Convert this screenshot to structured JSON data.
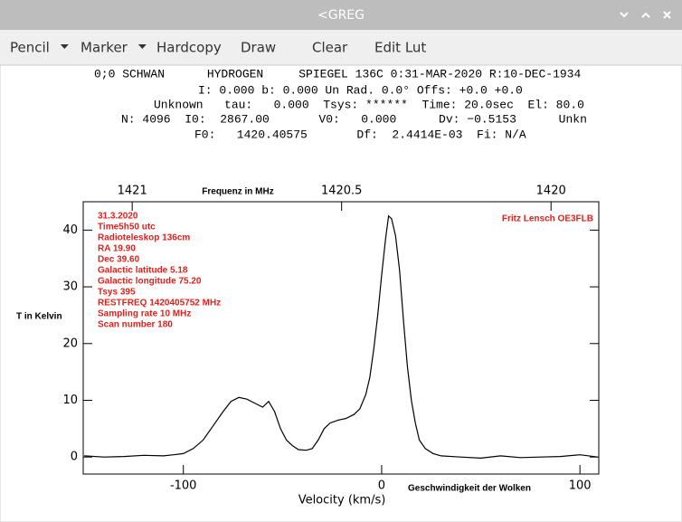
{
  "window": {
    "title": "<GREG"
  },
  "toolbar": {
    "buttons": [
      "Pencil",
      "Marker",
      "Hardcopy",
      "Draw",
      "Clear",
      "Edit Lut"
    ]
  },
  "header": {
    "lines": [
      "0;0 SCHWAN      HYDROGEN     SPIEGEL 136C 0:31-MAR-2020 R:10-DEC-1934",
      "I: 0.000 b: 0.000 Un Rad. 0.0° Offs: +0.0 +0.0",
      "Unknown   tau:   0.000  Tsys: ******  Time: 20.0sec  El: 80.0",
      "N: 4096  I0:  2867.00       V0:   0.000      Dv: −0.5153      Unkn",
      "F0:   1420.40575       Df:  2.4414E-03  Fi: N/A"
    ]
  },
  "chart_data": {
    "type": "line",
    "x_label": "Velocity (km/s)",
    "y_label": "T in Kelvin",
    "x2_label": "Frequenz in MHz",
    "annotations": [
      "31.3.2020",
      "Time5h50 utc",
      "Radioteleskop 136cm",
      "RA 19.90",
      "Dec 39.60",
      "Galactic latitude   5.18",
      "Galactic longitude 75.20",
      "Tsys    395",
      "RESTFREQ  1420405752 MHz",
      "Sampling rate 10 MHz",
      "Scan number   180"
    ],
    "annotation_right": "Fritz Lensch OE3FLB",
    "x_note": "Geschwindigkeit der Wolken",
    "annotation_color": "#e0201c",
    "x": [
      -150,
      -140,
      -130,
      -120,
      -110,
      -105,
      -100,
      -95,
      -90,
      -85,
      -80,
      -76,
      -72,
      -68,
      -64,
      -60,
      -57,
      -54,
      -51,
      -48,
      -45,
      -42,
      -38,
      -35,
      -32,
      -29,
      -26,
      -22,
      -18,
      -14,
      -11,
      -8,
      -6,
      -4,
      -2,
      0,
      2,
      3.5,
      5,
      7,
      9,
      11,
      13,
      15,
      17,
      19,
      22,
      26,
      30,
      40,
      50,
      60,
      70,
      80,
      90,
      100,
      109
    ],
    "series": [
      {
        "color": "#000000",
        "values": [
          0.2,
          0,
          0.1,
          0.3,
          0.2,
          0.4,
          0.6,
          1.5,
          3,
          5.5,
          8,
          9.8,
          10.5,
          10.2,
          9.5,
          8.8,
          9.8,
          8,
          5,
          3,
          2,
          1.3,
          1.2,
          1.5,
          3,
          5,
          6,
          6.5,
          6.8,
          7.5,
          8.5,
          11,
          14,
          19,
          25,
          32,
          38.5,
          42.5,
          42,
          39,
          33,
          24,
          16,
          10,
          6,
          3,
          1.5,
          0.6,
          0.2,
          0,
          -0.2,
          0.2,
          -0.1,
          0,
          0.1,
          0.4,
          0
        ]
      }
    ],
    "xlim": [
      -150.5,
      109.5
    ],
    "xticks": [
      -100,
      0,
      100
    ],
    "ylim": [
      -3,
      45
    ],
    "yticks": [
      0,
      10,
      20,
      30,
      40
    ],
    "x2lim": [
      1421.117,
      1419.886
    ],
    "x2ticks": [
      1421,
      1420.5,
      1420
    ]
  }
}
